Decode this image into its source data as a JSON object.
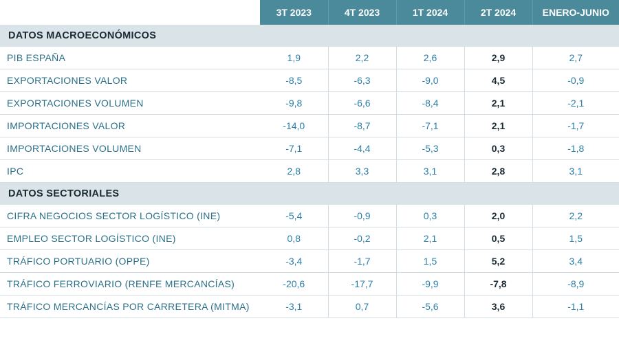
{
  "colors": {
    "header_bg": "#4a8a9b",
    "header_text": "#ffffff",
    "section_bg": "#d9e3e8",
    "section_text": "#1a2a33",
    "label_text": "#2b6f88",
    "value_text": "#2b7fa8",
    "bold_value_text": "#1a2a33",
    "row_border": "#d3dde2"
  },
  "typography": {
    "header_fontsize": 14,
    "section_fontsize": 14.5,
    "cell_fontsize": 14,
    "font_family": "Arial"
  },
  "table": {
    "type": "table",
    "bold_column_index": 3,
    "columns": [
      "3T 2023",
      "4T 2023",
      "1T 2024",
      "2T 2024",
      "ENERO-JUNIO"
    ],
    "sections": [
      {
        "title": "DATOS MACROECONÓMICOS",
        "rows": [
          {
            "label": "PIB ESPAÑA",
            "values": [
              "1,9",
              "2,2",
              "2,6",
              "2,9",
              "2,7"
            ]
          },
          {
            "label": "EXPORTACIONES VALOR",
            "values": [
              "-8,5",
              "-6,3",
              "-9,0",
              "4,5",
              "-0,9"
            ]
          },
          {
            "label": "EXPORTACIONES VOLUMEN",
            "values": [
              "-9,8",
              "-6,6",
              "-8,4",
              "2,1",
              "-2,1"
            ]
          },
          {
            "label": "IMPORTACIONES VALOR",
            "values": [
              "-14,0",
              "-8,7",
              "-7,1",
              "2,1",
              "-1,7"
            ]
          },
          {
            "label": "IMPORTACIONES VOLUMEN",
            "values": [
              "-7,1",
              "-4,4",
              "-5,3",
              "0,3",
              "-1,8"
            ]
          },
          {
            "label": "IPC",
            "values": [
              "2,8",
              "3,3",
              "3,1",
              "2,8",
              "3,1"
            ]
          }
        ]
      },
      {
        "title": "DATOS SECTORIALES",
        "rows": [
          {
            "label": "CIFRA NEGOCIOS SECTOR LOGÍSTICO (INE)",
            "values": [
              "-5,4",
              "-0,9",
              "0,3",
              "2,0",
              "2,2"
            ]
          },
          {
            "label": "EMPLEO SECTOR LOGÍSTICO (INE)",
            "values": [
              "0,8",
              "-0,2",
              "2,1",
              "0,5",
              "1,5"
            ]
          },
          {
            "label": "TRÁFICO PORTUARIO (OPPE)",
            "values": [
              "-3,4",
              "-1,7",
              "1,5",
              "5,2",
              "3,4"
            ]
          },
          {
            "label": "TRÁFICO FERROVIARIO (RENFE MERCANCÍAS)",
            "values": [
              "-20,6",
              "-17,7",
              "-9,9",
              "-7,8",
              "-8,9"
            ]
          },
          {
            "label": "TRÁFICO MERCANCÍAS POR CARRETERA (MITMA)",
            "values": [
              "-3,1",
              "0,7",
              "-5,6",
              "3,6",
              "-1,1"
            ]
          }
        ]
      }
    ]
  }
}
